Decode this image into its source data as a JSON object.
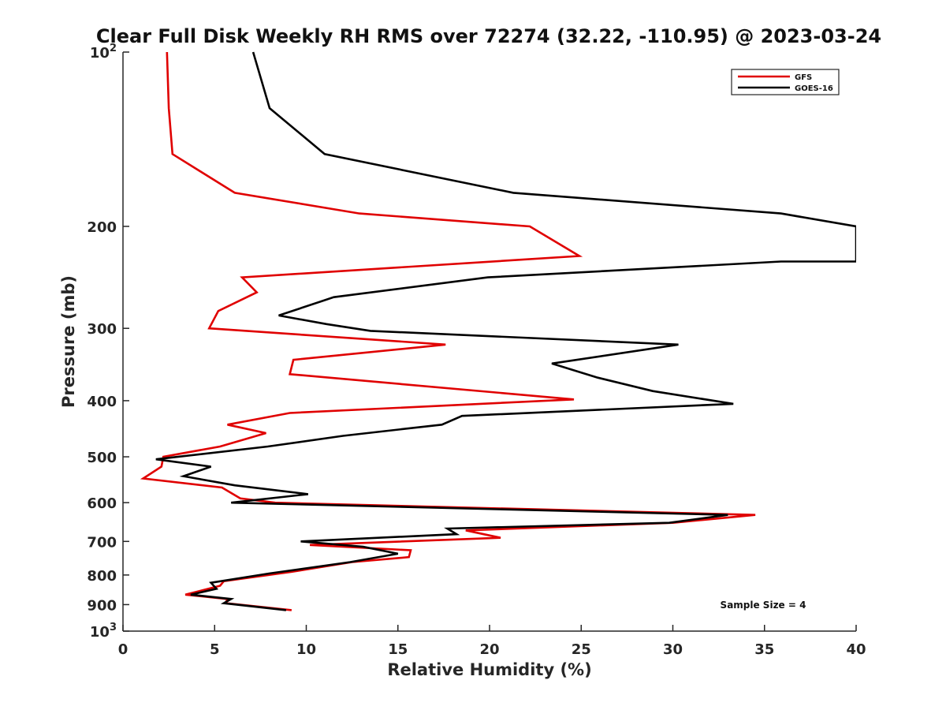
{
  "chart_data": {
    "type": "line",
    "title": "Clear Full Disk Weekly RH RMS over 72274 (32.22, -110.95) @ 2023-03-24",
    "xlabel": "Relative Humidity (%)",
    "ylabel": "Pressure (mb)",
    "xlim": [
      0,
      40
    ],
    "ylim": [
      100,
      1000
    ],
    "y_scale": "log",
    "y_reversed": true,
    "grid": false,
    "legend_position": "top-right",
    "x_ticks": [
      0,
      5,
      10,
      15,
      20,
      25,
      30,
      35,
      40
    ],
    "x_tick_labels": [
      "0",
      "5",
      "10",
      "15",
      "20",
      "25",
      "30",
      "35",
      "40"
    ],
    "y_ticks": [
      100,
      200,
      300,
      400,
      500,
      600,
      700,
      800,
      900,
      1000
    ],
    "y_tick_labels": [
      {
        "base": "10",
        "exp": "2"
      },
      {
        "base": "200",
        "exp": ""
      },
      {
        "base": "300",
        "exp": ""
      },
      {
        "base": "400",
        "exp": ""
      },
      {
        "base": "500",
        "exp": ""
      },
      {
        "base": "600",
        "exp": ""
      },
      {
        "base": "700",
        "exp": ""
      },
      {
        "base": "800",
        "exp": ""
      },
      {
        "base": "900",
        "exp": ""
      },
      {
        "base": "10",
        "exp": "3"
      }
    ],
    "annotation": "Sample Size = 4",
    "series": [
      {
        "name": "GFS",
        "color": "#e00000",
        "points": [
          [
            2.4,
            100
          ],
          [
            2.5,
            125
          ],
          [
            2.7,
            150
          ],
          [
            6.1,
            175
          ],
          [
            12.9,
            190
          ],
          [
            22.2,
            200
          ],
          [
            24.9,
            225
          ],
          [
            6.5,
            245
          ],
          [
            7.3,
            260
          ],
          [
            5.2,
            280
          ],
          [
            4.7,
            300
          ],
          [
            17.6,
            320
          ],
          [
            9.3,
            340
          ],
          [
            9.1,
            360
          ],
          [
            24.6,
            398
          ],
          [
            9.1,
            420
          ],
          [
            5.7,
            440
          ],
          [
            7.8,
            455
          ],
          [
            5.3,
            480
          ],
          [
            2.2,
            500
          ],
          [
            2.1,
            520
          ],
          [
            1.1,
            545
          ],
          [
            5.4,
            565
          ],
          [
            6.4,
            590
          ],
          [
            8.3,
            600
          ],
          [
            34.5,
            630
          ],
          [
            30.0,
            650
          ],
          [
            18.7,
            670
          ],
          [
            20.6,
            690
          ],
          [
            10.2,
            710
          ],
          [
            15.7,
            725
          ],
          [
            15.6,
            745
          ],
          [
            12.5,
            760
          ],
          [
            9.2,
            790
          ],
          [
            5.5,
            820
          ],
          [
            5.3,
            835
          ],
          [
            3.4,
            865
          ],
          [
            5.7,
            880
          ],
          [
            5.6,
            895
          ],
          [
            9.2,
            920
          ]
        ]
      },
      {
        "name": "GOES-16",
        "color": "#000000",
        "points": [
          [
            7.1,
            100
          ],
          [
            8.0,
            125
          ],
          [
            11.0,
            150
          ],
          [
            21.3,
            175
          ],
          [
            35.9,
            190
          ],
          [
            40.0,
            200
          ],
          [
            40.0,
            230
          ],
          [
            35.9,
            230
          ],
          [
            19.9,
            245
          ],
          [
            11.5,
            265
          ],
          [
            8.5,
            285
          ],
          [
            11.1,
            295
          ],
          [
            13.5,
            303
          ],
          [
            30.3,
            320
          ],
          [
            23.4,
            345
          ],
          [
            25.9,
            365
          ],
          [
            28.9,
            385
          ],
          [
            33.3,
            405
          ],
          [
            18.5,
            425
          ],
          [
            17.4,
            440
          ],
          [
            12.0,
            460
          ],
          [
            7.9,
            480
          ],
          [
            1.8,
            505
          ],
          [
            4.8,
            520
          ],
          [
            3.3,
            540
          ],
          [
            6.1,
            560
          ],
          [
            10.1,
            580
          ],
          [
            5.9,
            600
          ],
          [
            33.0,
            630
          ],
          [
            29.8,
            650
          ],
          [
            17.7,
            665
          ],
          [
            18.2,
            680
          ],
          [
            9.7,
            700
          ],
          [
            13.1,
            715
          ],
          [
            15.0,
            735
          ],
          [
            12.4,
            760
          ],
          [
            8.0,
            795
          ],
          [
            4.8,
            825
          ],
          [
            5.1,
            845
          ],
          [
            3.7,
            865
          ],
          [
            5.9,
            880
          ],
          [
            5.5,
            895
          ],
          [
            8.9,
            920
          ]
        ]
      }
    ]
  }
}
